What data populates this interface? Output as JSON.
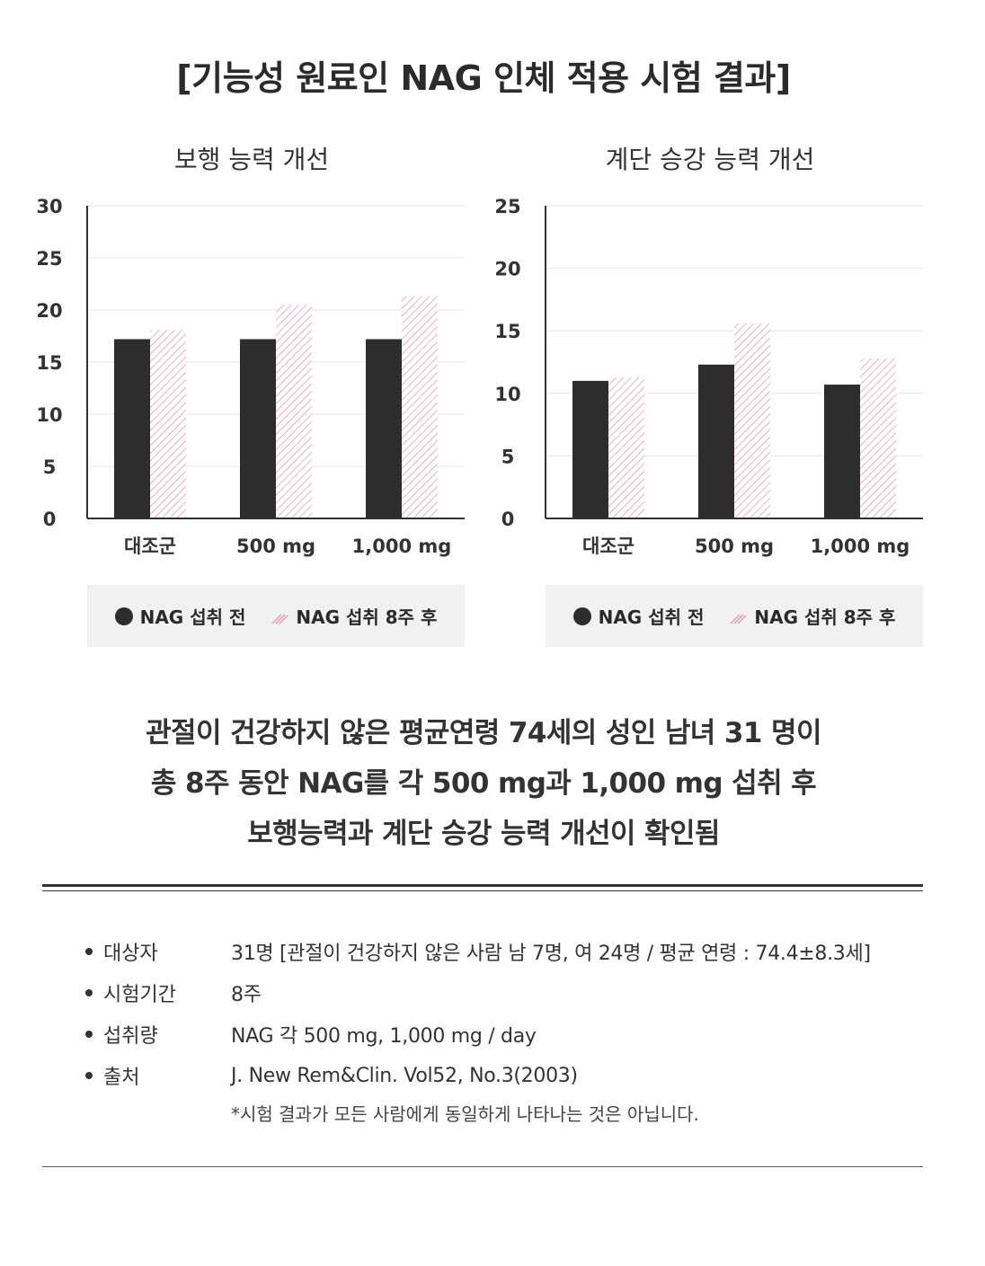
{
  "title": "[기능성 원료인 NAG 인체 적용 시험 결과]",
  "chart_data": [
    {
      "type": "bar",
      "title": "보행 능력 개선",
      "categories": [
        "대조군",
        "500 mg",
        "1,000 mg"
      ],
      "series": [
        {
          "name": "NAG 섭취 전",
          "values": [
            17.2,
            17.2,
            17.2
          ]
        },
        {
          "name": "NAG 섭취 8주 후",
          "values": [
            18.1,
            20.5,
            21.3
          ]
        }
      ],
      "ylim": [
        0,
        30
      ],
      "yticks": [
        0,
        5,
        10,
        15,
        20,
        25,
        30
      ],
      "grid": true,
      "legend_placement": "bottom"
    },
    {
      "type": "bar",
      "title": "계단 승강 능력 개선",
      "categories": [
        "대조군",
        "500 mg",
        "1,000 mg"
      ],
      "series": [
        {
          "name": "NAG 섭취 전",
          "values": [
            11.0,
            12.3,
            10.7
          ]
        },
        {
          "name": "NAG 섭취 8주 후",
          "values": [
            11.3,
            15.6,
            12.8
          ]
        }
      ],
      "ylim": [
        0,
        25
      ],
      "yticks": [
        0,
        5,
        10,
        15,
        20,
        25
      ],
      "grid": true,
      "legend_placement": "bottom"
    }
  ],
  "colors": {
    "before": "#2d2d2d",
    "after_hatch": "#e0a0ab",
    "grid": "#e6e6e6",
    "axis": "#333333"
  },
  "summary": {
    "line1": "관절이 건강하지 않은 평균연령 74세의 성인 남녀 31 명이",
    "line2": "총 8주 동안 NAG를 각 500 mg과 1,000 mg 섭취 후",
    "line3": "보행능력과 계단 승강 능력 개선이 확인됨"
  },
  "info": [
    {
      "key": "대상자",
      "value": "31명 [관절이 건강하지 않은 사람 남 7명, 여 24명 / 평균 연령 : 74.4±8.3세]"
    },
    {
      "key": "시험기간",
      "value": "8주"
    },
    {
      "key": "섭취량",
      "value": "NAG 각 500 mg, 1,000 mg / day"
    },
    {
      "key": "출처",
      "value": "J. New Rem&Clin. Vol52, No.3(2003)"
    }
  ],
  "note": "*시험 결과가 모든 사람에게 동일하게 나타나는 것은 아닙니다."
}
